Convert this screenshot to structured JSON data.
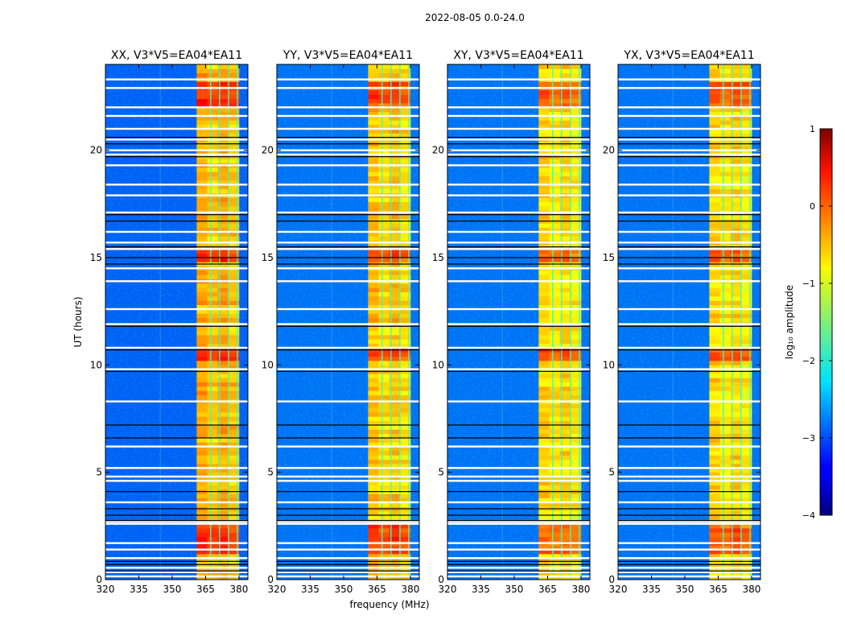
{
  "chart_data": {
    "type": "heatmap",
    "suptitle": "2022-08-05 0.0-24.0",
    "xlabel": "frequency (MHz)",
    "ylabel": "UT (hours)",
    "xlim": [
      320,
      384
    ],
    "ylim": [
      0,
      24
    ],
    "xticks": [
      320,
      335,
      350,
      365,
      380
    ],
    "yticks": [
      0,
      5,
      10,
      15,
      20
    ],
    "colorbar": {
      "label": "log₁₀ amplitude",
      "range": [
        -4,
        1
      ],
      "ticks": [
        -4,
        -3,
        -2,
        -1,
        0,
        1
      ],
      "tick_labels": [
        "−4",
        "−3",
        "−2",
        "−1",
        "0",
        "1"
      ],
      "colormap": "jet"
    },
    "panels": [
      {
        "title": "XX, V3*V5=EA04*EA11",
        "band_mhz": [
          361,
          380
        ],
        "level_low_band": -2.9,
        "level_high_band": -0.6
      },
      {
        "title": "YY, V3*V5=EA04*EA11",
        "band_mhz": [
          361,
          380
        ],
        "level_low_band": -2.8,
        "level_high_band": -0.7
      },
      {
        "title": "XY, V3*V5=EA04*EA11",
        "band_mhz": [
          361,
          380
        ],
        "level_low_band": -2.8,
        "level_high_band": -0.8
      },
      {
        "title": "YX, V3*V5=EA04*EA11",
        "band_mhz": [
          361,
          380
        ],
        "level_low_band": -2.8,
        "level_high_band": -0.8
      }
    ],
    "strong_intervals_ut_hours": [
      [
        1.2,
        2.4
      ],
      [
        10.2,
        10.6
      ],
      [
        14.8,
        15.2
      ],
      [
        22.0,
        23.0
      ]
    ],
    "flagged_white_rows_ut_hours": [
      0.15,
      0.35,
      0.55,
      1.0,
      1.4,
      1.7,
      2.6,
      2.7,
      3.6,
      4.6,
      4.8,
      5.2,
      6.2,
      8.3,
      9.8,
      10.8,
      11.9,
      12.6,
      13.9,
      14.5,
      15.4,
      15.7,
      16.2,
      17.1,
      17.9,
      18.4,
      19.3,
      19.8,
      20.0,
      20.5,
      21.0,
      21.6,
      22.0,
      22.9,
      23.3
    ],
    "flagged_black_rows_ut_hours": [
      0.4,
      0.7,
      0.85,
      2.75,
      3.0,
      3.3,
      4.1,
      6.6,
      7.2,
      9.7,
      10.7,
      11.8,
      14.7,
      15.0,
      15.5,
      16.7,
      17.0,
      19.7,
      20.3,
      20.6
    ]
  }
}
